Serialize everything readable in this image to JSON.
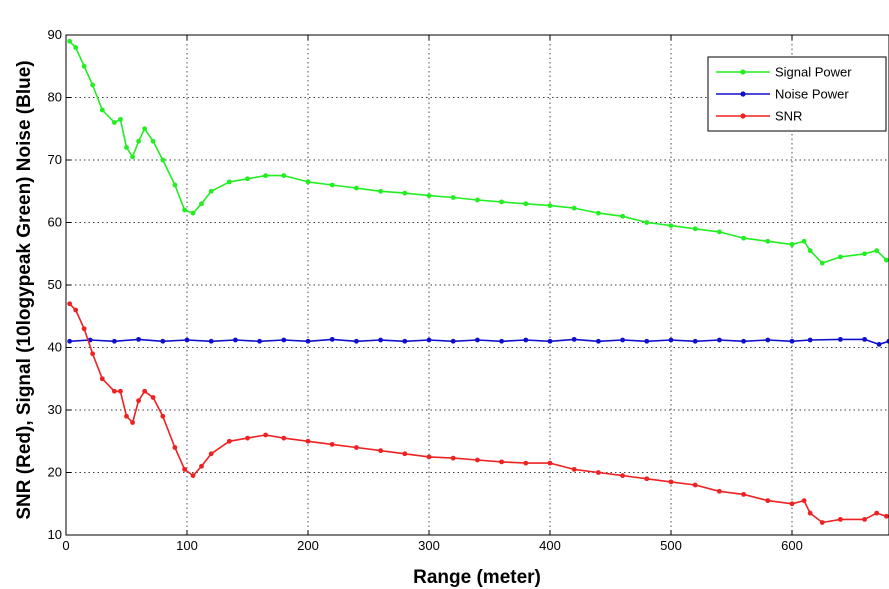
{
  "chart_data": {
    "type": "line",
    "title": "",
    "xlabel": "Range (meter)",
    "ylabel": "SNR (Red), Signal  (10logypeak Green) Noise (Blue)",
    "xlim": [
      0,
      680
    ],
    "ylim": [
      10,
      90
    ],
    "x_ticks": [
      0,
      100,
      200,
      300,
      400,
      500,
      600
    ],
    "y_ticks": [
      10,
      20,
      30,
      40,
      50,
      60,
      70,
      80,
      90
    ],
    "grid": true,
    "legend_position": "top-right",
    "series": [
      {
        "name": "Signal Power",
        "color": "#22ee22",
        "points": [
          [
            3,
            89
          ],
          [
            8,
            88
          ],
          [
            15,
            85
          ],
          [
            22,
            82
          ],
          [
            30,
            78
          ],
          [
            40,
            76
          ],
          [
            45,
            76.5
          ],
          [
            50,
            72
          ],
          [
            55,
            70.5
          ],
          [
            60,
            73
          ],
          [
            65,
            75
          ],
          [
            72,
            73
          ],
          [
            80,
            70
          ],
          [
            90,
            66
          ],
          [
            98,
            62
          ],
          [
            105,
            61.5
          ],
          [
            112,
            63
          ],
          [
            120,
            65
          ],
          [
            135,
            66.5
          ],
          [
            150,
            67
          ],
          [
            165,
            67.5
          ],
          [
            180,
            67.5
          ],
          [
            200,
            66.5
          ],
          [
            220,
            66
          ],
          [
            240,
            65.5
          ],
          [
            260,
            65
          ],
          [
            280,
            64.7
          ],
          [
            300,
            64.3
          ],
          [
            320,
            64
          ],
          [
            340,
            63.6
          ],
          [
            360,
            63.3
          ],
          [
            380,
            63
          ],
          [
            400,
            62.7
          ],
          [
            420,
            62.3
          ],
          [
            440,
            61.5
          ],
          [
            460,
            61
          ],
          [
            480,
            60
          ],
          [
            500,
            59.5
          ],
          [
            520,
            59
          ],
          [
            540,
            58.5
          ],
          [
            560,
            57.5
          ],
          [
            580,
            57
          ],
          [
            600,
            56.5
          ],
          [
            610,
            57
          ],
          [
            615,
            55.5
          ],
          [
            625,
            53.5
          ],
          [
            640,
            54.5
          ],
          [
            660,
            55
          ],
          [
            670,
            55.5
          ],
          [
            678,
            54
          ]
        ]
      },
      {
        "name": "Noise Power",
        "color": "#1010cc",
        "points": [
          [
            3,
            41
          ],
          [
            20,
            41.2
          ],
          [
            40,
            41
          ],
          [
            60,
            41.3
          ],
          [
            80,
            41
          ],
          [
            100,
            41.2
          ],
          [
            120,
            41
          ],
          [
            140,
            41.2
          ],
          [
            160,
            41
          ],
          [
            180,
            41.2
          ],
          [
            200,
            41
          ],
          [
            220,
            41.3
          ],
          [
            240,
            41
          ],
          [
            260,
            41.2
          ],
          [
            280,
            41
          ],
          [
            300,
            41.2
          ],
          [
            320,
            41
          ],
          [
            340,
            41.2
          ],
          [
            360,
            41
          ],
          [
            380,
            41.2
          ],
          [
            400,
            41
          ],
          [
            420,
            41.3
          ],
          [
            440,
            41
          ],
          [
            460,
            41.2
          ],
          [
            480,
            41
          ],
          [
            500,
            41.2
          ],
          [
            520,
            41
          ],
          [
            540,
            41.2
          ],
          [
            560,
            41
          ],
          [
            580,
            41.2
          ],
          [
            600,
            41
          ],
          [
            615,
            41.2
          ],
          [
            640,
            41.3
          ],
          [
            660,
            41.3
          ],
          [
            672,
            40.5
          ],
          [
            680,
            41
          ]
        ]
      },
      {
        "name": "SNR",
        "color": "#ee2222",
        "points": [
          [
            3,
            47
          ],
          [
            8,
            46
          ],
          [
            15,
            43
          ],
          [
            22,
            39
          ],
          [
            30,
            35
          ],
          [
            40,
            33
          ],
          [
            45,
            33
          ],
          [
            50,
            29
          ],
          [
            55,
            28
          ],
          [
            60,
            31.5
          ],
          [
            65,
            33
          ],
          [
            72,
            32
          ],
          [
            80,
            29
          ],
          [
            90,
            24
          ],
          [
            98,
            20.5
          ],
          [
            105,
            19.5
          ],
          [
            112,
            21
          ],
          [
            120,
            23
          ],
          [
            135,
            25
          ],
          [
            150,
            25.5
          ],
          [
            165,
            26
          ],
          [
            180,
            25.5
          ],
          [
            200,
            25
          ],
          [
            220,
            24.5
          ],
          [
            240,
            24
          ],
          [
            260,
            23.5
          ],
          [
            280,
            23
          ],
          [
            300,
            22.5
          ],
          [
            320,
            22.3
          ],
          [
            340,
            22
          ],
          [
            360,
            21.7
          ],
          [
            380,
            21.5
          ],
          [
            400,
            21.5
          ],
          [
            420,
            20.5
          ],
          [
            440,
            20
          ],
          [
            460,
            19.5
          ],
          [
            480,
            19
          ],
          [
            500,
            18.5
          ],
          [
            520,
            18
          ],
          [
            540,
            17
          ],
          [
            560,
            16.5
          ],
          [
            580,
            15.5
          ],
          [
            600,
            15
          ],
          [
            610,
            15.5
          ],
          [
            615,
            13.5
          ],
          [
            625,
            12
          ],
          [
            640,
            12.5
          ],
          [
            660,
            12.5
          ],
          [
            670,
            13.5
          ],
          [
            678,
            13
          ]
        ]
      }
    ]
  }
}
